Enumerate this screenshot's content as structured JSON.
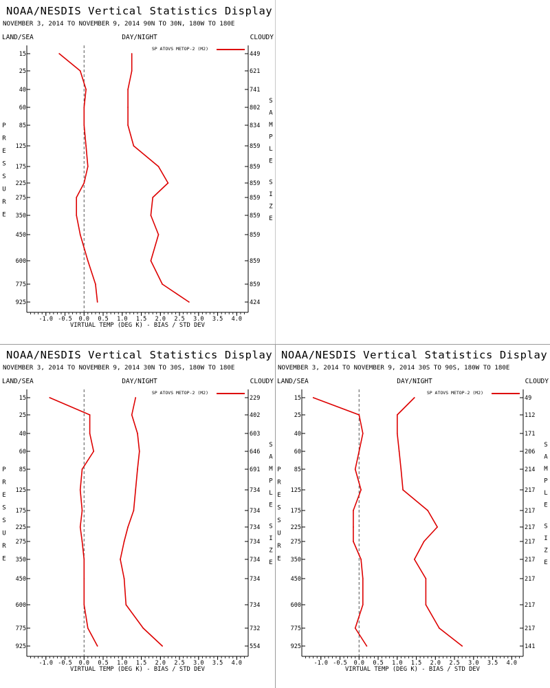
{
  "colors": {
    "series": "#dd0000",
    "background": "#ffffff",
    "axis": "#000000",
    "zero_line": "#555555"
  },
  "chart_data": [
    {
      "type": "line",
      "title": "NOAA/NESDIS Vertical Statistics Display",
      "subtitle": "NOVEMBER 3, 2014 TO NOVEMBER 9, 2014  90N TO 30N, 180W TO 180E",
      "top_left_label": "LAND/SEA",
      "top_center_label": "DAY/NIGHT",
      "top_right_label": "CLOUDY",
      "legend": "SP ATOVS METOP-2 (M2)",
      "legend_position": "top-right",
      "xlabel": "VIRTUAL TEMP (DEG K) - BIAS / STD DEV",
      "ylabel": "PRESSURE",
      "right_axis_label": "SAMPLE SIZE",
      "xlim": [
        -1.5,
        4.3
      ],
      "x_ticks": [
        "-1.0",
        "-0.5",
        "0.0",
        "0.5",
        "1.0",
        "1.5",
        "2.0",
        "2.5",
        "3.0",
        "3.5",
        "4.0"
      ],
      "pressure_levels": [
        "15",
        "25",
        "40",
        "60",
        "85",
        "125",
        "175",
        "225",
        "275",
        "350",
        "450",
        "600",
        "775",
        "925"
      ],
      "sample_size": [
        "449",
        "621",
        "741",
        "802",
        "834",
        "859",
        "859",
        "859",
        "859",
        "859",
        "859",
        "859",
        "859",
        "424"
      ],
      "series": [
        {
          "name": "BIAS",
          "values": [
            -0.65,
            -0.1,
            0.05,
            0.0,
            0.0,
            0.05,
            0.1,
            0.0,
            -0.2,
            -0.2,
            -0.1,
            0.1,
            0.3,
            0.35
          ]
        },
        {
          "name": "STD DEV",
          "values": [
            1.25,
            1.25,
            1.15,
            1.15,
            1.15,
            1.3,
            1.95,
            2.2,
            1.8,
            1.75,
            1.95,
            1.75,
            2.05,
            2.75
          ]
        }
      ]
    },
    {
      "type": "line",
      "title": "NOAA/NESDIS Vertical Statistics Display",
      "subtitle": "NOVEMBER 3, 2014 TO NOVEMBER 9, 2014  30N TO 30S, 180W TO 180E",
      "top_left_label": "LAND/SEA",
      "top_center_label": "DAY/NIGHT",
      "top_right_label": "CLOUDY",
      "legend": "SP ATOVS METOP-2 (M2)",
      "legend_position": "top-right",
      "xlabel": "VIRTUAL TEMP (DEG K) - BIAS / STD DEV",
      "ylabel": "PRESSURE",
      "right_axis_label": "SAMPLE SIZE",
      "xlim": [
        -1.5,
        4.3
      ],
      "x_ticks": [
        "-1.0",
        "-0.5",
        "0.0",
        "0.5",
        "1.0",
        "1.5",
        "2.0",
        "2.5",
        "3.0",
        "3.5",
        "4.0"
      ],
      "pressure_levels": [
        "15",
        "25",
        "40",
        "60",
        "85",
        "125",
        "175",
        "225",
        "275",
        "350",
        "450",
        "600",
        "775",
        "925"
      ],
      "sample_size": [
        "229",
        "402",
        "603",
        "646",
        "691",
        "734",
        "734",
        "734",
        "734",
        "734",
        "734",
        "734",
        "732",
        "554"
      ],
      "series": [
        {
          "name": "BIAS",
          "values": [
            -0.9,
            0.15,
            0.15,
            0.25,
            -0.05,
            -0.1,
            -0.05,
            -0.1,
            -0.05,
            0.0,
            0.0,
            0.0,
            0.1,
            0.35
          ]
        },
        {
          "name": "STD DEV",
          "values": [
            1.35,
            1.25,
            1.4,
            1.45,
            1.4,
            1.35,
            1.3,
            1.15,
            1.05,
            0.95,
            1.05,
            1.1,
            1.55,
            2.05
          ]
        }
      ]
    },
    {
      "type": "line",
      "title": "NOAA/NESDIS Vertical Statistics Display",
      "subtitle": "NOVEMBER 3, 2014 TO NOVEMBER 9, 2014  30S TO 90S, 180W TO 180E",
      "top_left_label": "LAND/SEA",
      "top_center_label": "DAY/NIGHT",
      "top_right_label": "CLOUDY",
      "legend": "SP ATOVS METOP-2 (M2)",
      "legend_position": "top-right",
      "xlabel": "VIRTUAL TEMP (DEG K) - BIAS / STD DEV",
      "ylabel": "PRESSURE",
      "right_axis_label": "SAMPLE SIZE",
      "xlim": [
        -1.5,
        4.3
      ],
      "x_ticks": [
        "-1.0",
        "-0.5",
        "0.0",
        "0.5",
        "1.0",
        "1.5",
        "2.0",
        "2.5",
        "3.0",
        "3.5",
        "4.0"
      ],
      "pressure_levels": [
        "15",
        "25",
        "40",
        "60",
        "85",
        "125",
        "175",
        "225",
        "275",
        "350",
        "450",
        "600",
        "775",
        "925"
      ],
      "sample_size": [
        "49",
        "112",
        "171",
        "206",
        "214",
        "217",
        "217",
        "217",
        "217",
        "217",
        "217",
        "217",
        "217",
        "141"
      ],
      "series": [
        {
          "name": "BIAS",
          "values": [
            -1.2,
            0.0,
            0.1,
            0.0,
            -0.1,
            0.05,
            -0.15,
            -0.15,
            -0.15,
            0.05,
            0.1,
            0.1,
            -0.1,
            0.2
          ]
        },
        {
          "name": "STD DEV",
          "values": [
            1.45,
            1.0,
            1.0,
            1.05,
            1.1,
            1.15,
            1.8,
            2.05,
            1.7,
            1.45,
            1.75,
            1.75,
            2.1,
            2.7
          ]
        }
      ]
    }
  ]
}
